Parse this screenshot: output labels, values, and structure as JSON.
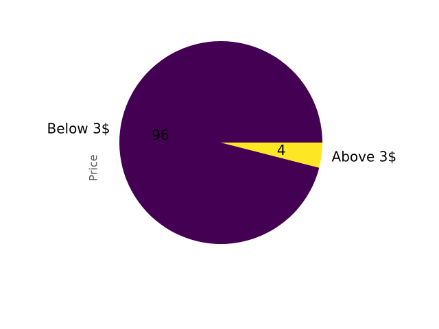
{
  "chart_data": {
    "type": "pie",
    "categories": [
      "Below 3$",
      "Above 3$"
    ],
    "values": [
      96,
      4
    ],
    "value_labels": [
      "96",
      "4"
    ],
    "ylabel": "Price",
    "colors": [
      "#440154",
      "#fde725"
    ],
    "legend": "none",
    "grid": false
  }
}
